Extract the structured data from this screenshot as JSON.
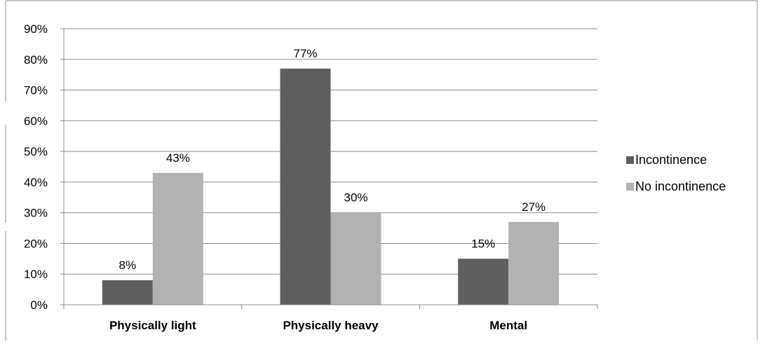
{
  "chart_data": {
    "type": "bar",
    "title": "",
    "xlabel": "",
    "ylabel": "",
    "categories": [
      "Physically light",
      "Physically heavy",
      "Mental"
    ],
    "series": [
      {
        "name": "Incontinence",
        "values": [
          8,
          77,
          15
        ],
        "labels": [
          "8%",
          "77%",
          "15%"
        ],
        "color": "#5f5f5f"
      },
      {
        "name": "No incontinence",
        "values": [
          43,
          30,
          27
        ],
        "labels": [
          "43%",
          "30%",
          "27%"
        ],
        "color": "#b2b2b2"
      }
    ],
    "ylim": [
      0,
      90
    ],
    "yticks": [
      0,
      10,
      20,
      30,
      40,
      50,
      60,
      70,
      80,
      90
    ],
    "ytick_labels": [
      "0%",
      "10%",
      "20%",
      "30%",
      "40%",
      "50%",
      "60%",
      "70%",
      "80%",
      "90%"
    ],
    "grid": true,
    "legend_position": "right"
  }
}
